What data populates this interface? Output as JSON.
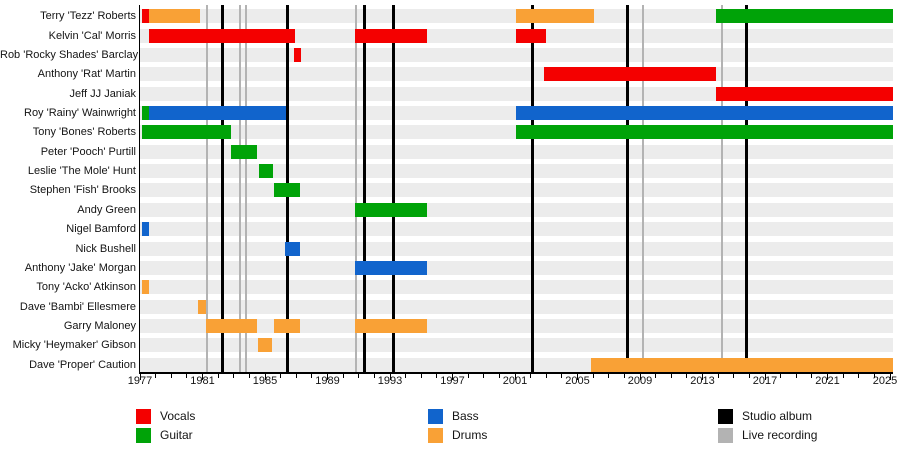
{
  "colors": {
    "vocals": "#f40000",
    "guitar": "#00a308",
    "bass": "#1164cc",
    "drums": "#f9a136",
    "studio_album": "#000000",
    "live_recording": "#b3b3b3",
    "row_band": "#ececec",
    "axis": "#000000",
    "background": "#ffffff"
  },
  "chart_data": {
    "type": "gantt",
    "x_axis": {
      "min": 1977,
      "max": 2025.2,
      "tick_label_years": [
        1977,
        1981,
        1985,
        1989,
        1993,
        1997,
        2001,
        2005,
        2009,
        2013,
        2017,
        2021,
        2025
      ],
      "minor_tick_every_years": 1,
      "major_tick_every_years": 4
    },
    "members": [
      {
        "name": "Terry 'Tezz' Roberts",
        "bars": [
          {
            "role": "vocals",
            "start": 1977.13,
            "end": 1977.58
          },
          {
            "role": "drums",
            "start": 1977.58,
            "end": 1980.84
          },
          {
            "role": "drums",
            "start": 2001.06,
            "end": 2006.06
          },
          {
            "role": "guitar",
            "start": 2013.86,
            "end": 2025.19
          }
        ]
      },
      {
        "name": "Kelvin 'Cal' Morris",
        "bars": [
          {
            "role": "vocals",
            "start": 1977.58,
            "end": 1986.92
          },
          {
            "role": "vocals",
            "start": 1990.76,
            "end": 1995.37
          },
          {
            "role": "vocals",
            "start": 2001.06,
            "end": 2002.98
          }
        ]
      },
      {
        "name": "Rob 'Rocky Shades' Barclay",
        "bars": [
          {
            "role": "vocals",
            "start": 1986.86,
            "end": 1987.3
          }
        ]
      },
      {
        "name": "Anthony 'Rat' Martin",
        "bars": [
          {
            "role": "vocals",
            "start": 2002.86,
            "end": 2013.86
          }
        ]
      },
      {
        "name": "Jeff JJ Janiak",
        "bars": [
          {
            "role": "vocals",
            "start": 2013.86,
            "end": 2025.19
          }
        ]
      },
      {
        "name": "Roy 'Rainy' Wainwright",
        "bars": [
          {
            "role": "guitar",
            "start": 1977.13,
            "end": 1977.58
          },
          {
            "role": "bass",
            "start": 1977.58,
            "end": 1986.34
          },
          {
            "role": "bass",
            "start": 2001.06,
            "end": 2025.19
          }
        ]
      },
      {
        "name": "Tony 'Bones' Roberts",
        "bars": [
          {
            "role": "guitar",
            "start": 1977.13,
            "end": 1982.82
          },
          {
            "role": "guitar",
            "start": 2001.06,
            "end": 2025.19
          }
        ]
      },
      {
        "name": "Peter 'Pooch' Purtill",
        "bars": [
          {
            "role": "guitar",
            "start": 1982.82,
            "end": 1984.49
          }
        ]
      },
      {
        "name": "Leslie 'The Mole' Hunt",
        "bars": [
          {
            "role": "guitar",
            "start": 1984.62,
            "end": 1985.51
          }
        ]
      },
      {
        "name": "Stephen 'Fish' Brooks",
        "bars": [
          {
            "role": "guitar",
            "start": 1985.58,
            "end": 1987.24
          }
        ]
      },
      {
        "name": "Andy Green",
        "bars": [
          {
            "role": "guitar",
            "start": 1990.76,
            "end": 1995.37
          }
        ]
      },
      {
        "name": "Nigel Bamford",
        "bars": [
          {
            "role": "bass",
            "start": 1977.13,
            "end": 1977.58
          }
        ]
      },
      {
        "name": "Nick Bushell",
        "bars": [
          {
            "role": "bass",
            "start": 1986.28,
            "end": 1987.24
          }
        ]
      },
      {
        "name": "Anthony 'Jake' Morgan",
        "bars": [
          {
            "role": "bass",
            "start": 1990.76,
            "end": 1995.37
          }
        ]
      },
      {
        "name": "Tony 'Acko' Atkinson",
        "bars": [
          {
            "role": "drums",
            "start": 1977.13,
            "end": 1977.58
          }
        ]
      },
      {
        "name": "Dave 'Bambi' Ellesmere",
        "bars": [
          {
            "role": "drums",
            "start": 1980.71,
            "end": 1981.22
          }
        ]
      },
      {
        "name": "Garry Maloney",
        "bars": [
          {
            "role": "drums",
            "start": 1981.22,
            "end": 1984.49
          },
          {
            "role": "drums",
            "start": 1985.58,
            "end": 1987.24
          },
          {
            "role": "drums",
            "start": 1990.76,
            "end": 1995.37
          }
        ]
      },
      {
        "name": "Micky 'Heymaker' Gibson",
        "bars": [
          {
            "role": "drums",
            "start": 1984.55,
            "end": 1985.44
          }
        ]
      },
      {
        "name": "Dave 'Proper' Caution",
        "bars": [
          {
            "role": "drums",
            "start": 2005.86,
            "end": 2025.19
          }
        ]
      }
    ],
    "studio_album_years": [
      1982.3,
      1986.42,
      1991.35,
      1993.2,
      2002.12,
      2008.2,
      2015.8
    ],
    "live_recording_years": [
      1981.28,
      1983.43,
      1983.8,
      1990.85,
      2009.22,
      2014.22
    ],
    "legend_position": "bottom"
  },
  "legend": {
    "columns": [
      {
        "items": [
          {
            "role": "vocals",
            "label": "Vocals"
          },
          {
            "role": "guitar",
            "label": "Guitar"
          }
        ]
      },
      {
        "items": [
          {
            "role": "bass",
            "label": "Bass"
          },
          {
            "role": "drums",
            "label": "Drums"
          }
        ]
      },
      {
        "items": [
          {
            "role": "studio_album",
            "label": "Studio album"
          },
          {
            "role": "live_recording",
            "label": "Live recording"
          }
        ]
      }
    ]
  }
}
